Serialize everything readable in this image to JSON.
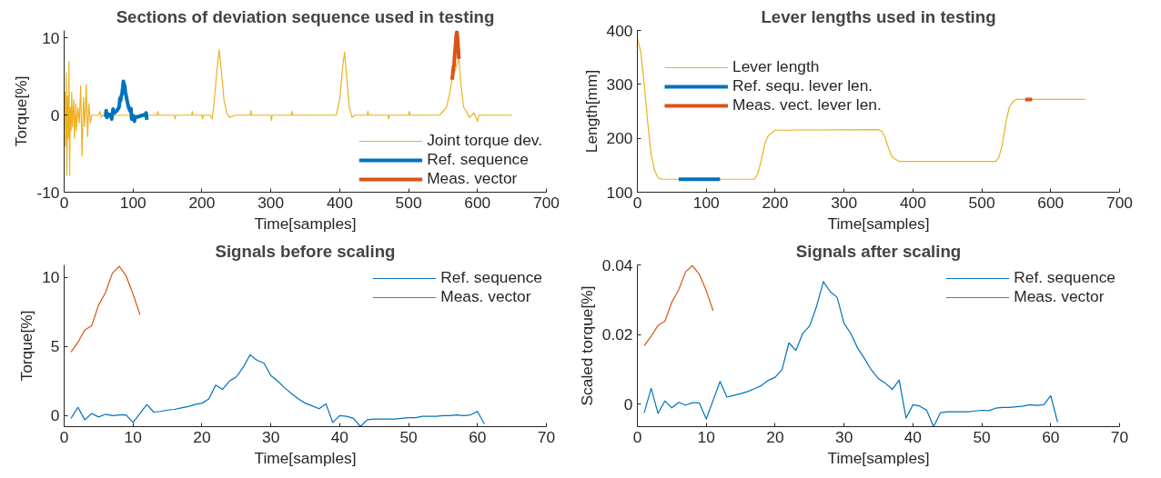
{
  "chart_data": [
    {
      "type": "line",
      "title": "Sections of deviation sequence used in testing",
      "xlabel": "Time[samples]",
      "ylabel": "Torque[%]",
      "xlim": [
        0,
        700
      ],
      "xticks": [
        0,
        100,
        200,
        300,
        400,
        500,
        600,
        700
      ],
      "ylim": [
        -10,
        11
      ],
      "yticks": [
        -10,
        0,
        10
      ],
      "grid": false,
      "legend": "bottom right",
      "series": [
        {
          "name": "Joint torque dev.",
          "color": "#edb120",
          "x": [
            0,
            1,
            2,
            3,
            4,
            5,
            6,
            7,
            8,
            9,
            10,
            11,
            12,
            14,
            15,
            17,
            18,
            20,
            22,
            24,
            26,
            28,
            30,
            32,
            34,
            36,
            38,
            40,
            50,
            52,
            54,
            56,
            60,
            120,
            135,
            136,
            137,
            160,
            161,
            162,
            185,
            186,
            187,
            200,
            201,
            202,
            210,
            212,
            215,
            218,
            222,
            225,
            228,
            232,
            236,
            240,
            248,
            270,
            271,
            272,
            300,
            301,
            302,
            330,
            331,
            332,
            360,
            395,
            400,
            404,
            407,
            410,
            414,
            418,
            422,
            440,
            441,
            442,
            470,
            471,
            472,
            500,
            501,
            502,
            540,
            545,
            550,
            555,
            560,
            563,
            573,
            576,
            580,
            584,
            588,
            592,
            595,
            600,
            602,
            650
          ],
          "values": [
            0,
            3,
            -4,
            5.5,
            -7.8,
            2.5,
            -3,
            7,
            -7.8,
            1,
            -2,
            3,
            -1.5,
            2,
            -3,
            1.5,
            -2,
            1,
            -1,
            3.8,
            -5.3,
            2.3,
            -1.5,
            4,
            -2.8,
            1.5,
            -1,
            0,
            0,
            0.5,
            -0.3,
            0,
            0,
            0,
            0,
            0.5,
            0,
            0,
            -0.5,
            0,
            0,
            0.5,
            0,
            0,
            -0.5,
            0,
            0,
            0,
            -0.5,
            2,
            6,
            8.5,
            6,
            2,
            0.3,
            -0.3,
            0,
            0,
            0.6,
            0,
            0,
            -0.7,
            0,
            0,
            0.5,
            0,
            0,
            0,
            2,
            6,
            8.2,
            5,
            1,
            -0.3,
            0,
            0,
            0.5,
            0,
            0,
            -0.5,
            0,
            0,
            0.5,
            0,
            0,
            0,
            0.5,
            1,
            3,
            4.6,
            7.3,
            4,
            1,
            0.5,
            -0.3,
            0,
            0.3,
            -0.8,
            0,
            0
          ]
        },
        {
          "name": "Ref. sequence",
          "color": "#0072bd",
          "x": [
            60,
            61,
            62,
            63,
            64,
            65,
            66,
            67,
            68,
            69,
            70,
            71,
            72,
            73,
            74,
            75,
            76,
            77,
            78,
            79,
            80,
            81,
            82,
            83,
            84,
            85,
            86,
            87,
            88,
            89,
            90,
            91,
            92,
            93,
            94,
            95,
            96,
            97,
            98,
            99,
            100,
            101,
            102,
            103,
            104,
            105,
            106,
            107,
            108,
            109,
            110,
            111,
            112,
            113,
            114,
            115,
            116,
            117,
            118,
            119,
            120
          ],
          "values": [
            -0.2,
            0.6,
            -0.3,
            0.15,
            -0.1,
            0.1,
            0,
            0.05,
            0.05,
            -0.5,
            0.15,
            0.8,
            0.25,
            0.3,
            0.4,
            0.45,
            0.55,
            0.65,
            0.8,
            0.9,
            1.2,
            2.2,
            1.9,
            2.5,
            2.8,
            3.5,
            4.4,
            4.0,
            3.8,
            2.9,
            2.5,
            2.0,
            1.6,
            1.2,
            0.9,
            0.7,
            0.5,
            0.85,
            -0.5,
            0,
            -0.05,
            -0.2,
            -0.8,
            -0.3,
            -0.25,
            -0.25,
            -0.25,
            -0.25,
            -0.2,
            -0.15,
            -0.15,
            -0.05,
            -0.05,
            -0.05,
            0,
            0,
            0.05,
            0,
            0.05,
            0.3,
            -0.6
          ]
        },
        {
          "name": "Meas. vector",
          "color": "#d95319",
          "x": [
            563,
            564,
            565,
            566,
            567,
            568,
            569,
            570,
            571,
            572,
            573
          ],
          "values": [
            4.6,
            5.3,
            6.2,
            6.5,
            8.0,
            8.9,
            10.3,
            10.8,
            10.1,
            8.8,
            7.3
          ]
        }
      ]
    },
    {
      "type": "line",
      "title": "Lever lengths used in testing",
      "xlabel": "Time[samples]",
      "ylabel": "Length[mm]",
      "xlim": [
        0,
        700
      ],
      "xticks": [
        0,
        100,
        200,
        300,
        400,
        500,
        600,
        700
      ],
      "ylim": [
        100,
        400
      ],
      "yticks": [
        100,
        200,
        300,
        400
      ],
      "grid": false,
      "legend": "top left",
      "series": [
        {
          "name": "Lever length",
          "color": "#edb120",
          "x": [
            0,
            5,
            10,
            15,
            20,
            25,
            30,
            35,
            170,
            175,
            180,
            185,
            190,
            200,
            350,
            355,
            360,
            365,
            370,
            380,
            520,
            525,
            530,
            535,
            540,
            545,
            550,
            650
          ],
          "values": [
            385,
            360,
            300,
            230,
            170,
            140,
            127,
            124,
            124,
            135,
            160,
            190,
            205,
            215,
            216,
            213,
            200,
            180,
            165,
            157,
            157,
            165,
            190,
            230,
            258,
            268,
            272,
            272
          ]
        },
        {
          "name": "Ref. sequ. lever len.",
          "color": "#0072bd",
          "x": [
            60,
            120
          ],
          "values": [
            124,
            124
          ]
        },
        {
          "name": "Meas. vect. lever len.",
          "color": "#d95319",
          "x": [
            563,
            573
          ],
          "values": [
            272,
            272
          ]
        }
      ]
    },
    {
      "type": "line",
      "title": "Signals before scaling",
      "xlabel": "Time[samples]",
      "ylabel": "Torque[%]",
      "xlim": [
        0,
        70
      ],
      "xticks": [
        0,
        10,
        20,
        30,
        40,
        50,
        60,
        70
      ],
      "ylim": [
        -0.8,
        10.9
      ],
      "yticks": [
        0,
        5,
        10
      ],
      "grid": false,
      "legend": "top right",
      "series": [
        {
          "name": "Ref. sequence",
          "color": "#0072bd",
          "x": [
            1,
            2,
            3,
            4,
            5,
            6,
            7,
            8,
            9,
            10,
            11,
            12,
            13,
            14,
            15,
            16,
            17,
            18,
            19,
            20,
            21,
            22,
            23,
            24,
            25,
            26,
            27,
            28,
            29,
            30,
            31,
            32,
            33,
            34,
            35,
            36,
            37,
            38,
            39,
            40,
            41,
            42,
            43,
            44,
            45,
            46,
            47,
            48,
            49,
            50,
            51,
            52,
            53,
            54,
            55,
            56,
            57,
            58,
            59,
            60,
            61
          ],
          "values": [
            -0.2,
            0.6,
            -0.3,
            0.15,
            -0.1,
            0.1,
            0,
            0.05,
            0.05,
            -0.5,
            0.15,
            0.8,
            0.25,
            0.3,
            0.4,
            0.45,
            0.55,
            0.65,
            0.8,
            0.9,
            1.2,
            2.2,
            1.9,
            2.5,
            2.8,
            3.5,
            4.4,
            4.0,
            3.8,
            2.9,
            2.5,
            2.0,
            1.6,
            1.2,
            0.9,
            0.7,
            0.5,
            0.85,
            -0.5,
            0,
            -0.05,
            -0.2,
            -0.8,
            -0.3,
            -0.25,
            -0.25,
            -0.25,
            -0.25,
            -0.2,
            -0.15,
            -0.15,
            -0.05,
            -0.05,
            -0.05,
            0,
            0,
            0.05,
            0,
            0.05,
            0.3,
            -0.6
          ]
        },
        {
          "name": "Meas. vector",
          "color": "#d95319",
          "x": [
            1,
            2,
            3,
            4,
            5,
            6,
            7,
            8,
            9,
            10,
            11
          ],
          "values": [
            4.6,
            5.3,
            6.2,
            6.5,
            8.0,
            8.9,
            10.3,
            10.8,
            10.1,
            8.8,
            7.3
          ]
        }
      ]
    },
    {
      "type": "line",
      "title": "Signals after scaling",
      "xlabel": "Time[samples]",
      "ylabel": "Scaled torque[%]",
      "xlim": [
        0,
        70
      ],
      "xticks": [
        0,
        10,
        20,
        30,
        40,
        50,
        60,
        70
      ],
      "ylim": [
        -0.0065,
        0.04
      ],
      "yticks": [
        0,
        0.02,
        0.04
      ],
      "grid": false,
      "legend": "top right",
      "series": [
        {
          "name": "Ref. sequence",
          "color": "#0072bd",
          "x": [
            1,
            2,
            3,
            4,
            5,
            6,
            7,
            8,
            9,
            10,
            11,
            12,
            13,
            14,
            15,
            16,
            17,
            18,
            19,
            20,
            21,
            22,
            23,
            24,
            25,
            26,
            27,
            28,
            29,
            30,
            31,
            32,
            33,
            34,
            35,
            36,
            37,
            38,
            39,
            40,
            41,
            42,
            43,
            44,
            45,
            46,
            47,
            48,
            49,
            50,
            51,
            52,
            53,
            54,
            55,
            56,
            57,
            58,
            59,
            60,
            61
          ],
          "values": [
            -0.0025,
            0.0045,
            -0.0027,
            0.0009,
            -0.0011,
            0.0005,
            -0.0003,
            0.0004,
            0.0003,
            -0.0043,
            0.0011,
            0.0065,
            0.002,
            0.0025,
            0.003,
            0.0036,
            0.0044,
            0.0053,
            0.0068,
            0.0077,
            0.0099,
            0.0176,
            0.0154,
            0.0203,
            0.0224,
            0.028,
            0.0352,
            0.0323,
            0.0307,
            0.0232,
            0.0202,
            0.016,
            0.013,
            0.0097,
            0.0073,
            0.006,
            0.0042,
            0.0069,
            -0.004,
            -0.0002,
            -0.0006,
            -0.0018,
            -0.0065,
            -0.0025,
            -0.0022,
            -0.0022,
            -0.0022,
            -0.0022,
            -0.002,
            -0.0018,
            -0.0019,
            -0.0012,
            -0.001,
            -0.001,
            -0.0008,
            -0.0006,
            -0.0002,
            -0.0004,
            -0.0002,
            0.0024,
            -0.0052
          ]
        },
        {
          "name": "Meas. vector",
          "color": "#d95319",
          "x": [
            1,
            2,
            3,
            4,
            5,
            6,
            7,
            8,
            9,
            10,
            11
          ],
          "values": [
            0.0168,
            0.0195,
            0.0226,
            0.0238,
            0.0293,
            0.0328,
            0.038,
            0.0398,
            0.0373,
            0.0326,
            0.0268
          ]
        }
      ]
    }
  ]
}
